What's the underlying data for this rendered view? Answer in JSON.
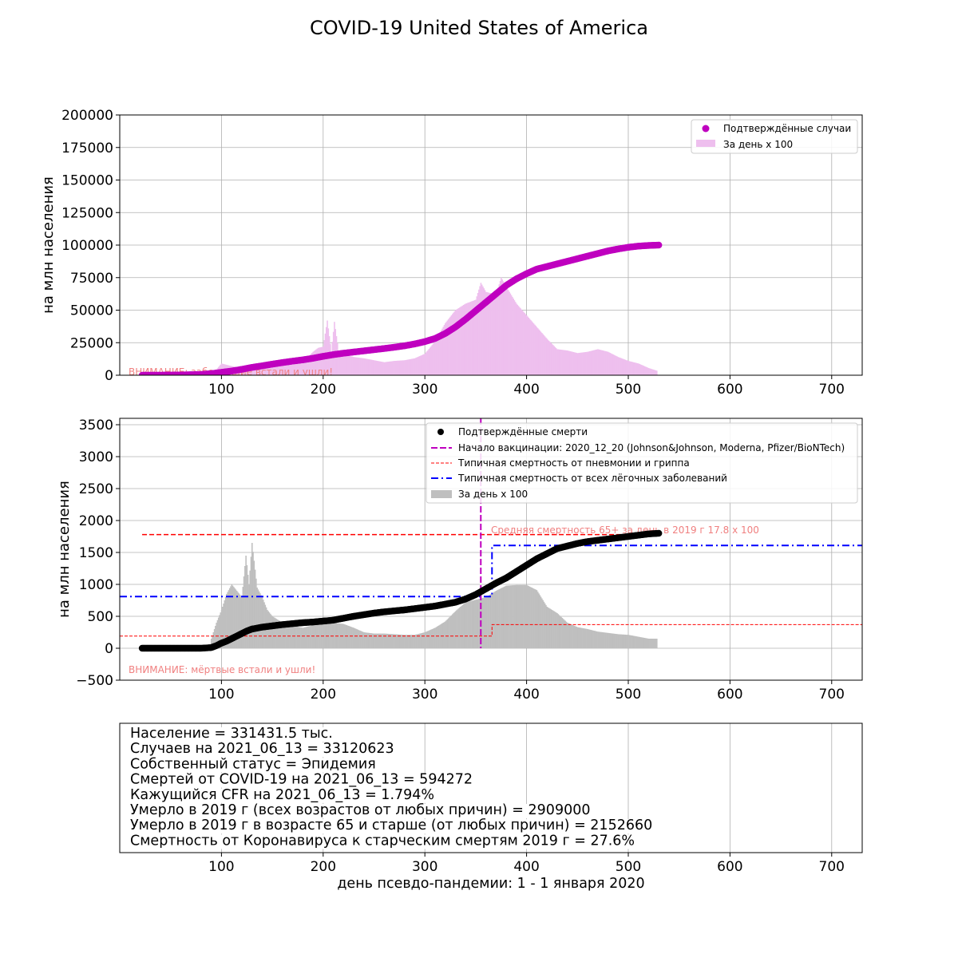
{
  "title": "COVID-19 United States of America",
  "chart_data": [
    {
      "type": "scatter",
      "id": "cases",
      "ylabel": "на млн населения",
      "xlim": [
        0,
        730
      ],
      "ylim": [
        0,
        200000
      ],
      "xticks": [
        100,
        200,
        300,
        400,
        500,
        600,
        700
      ],
      "yticks": [
        0,
        25000,
        50000,
        75000,
        100000,
        125000,
        150000,
        175000,
        200000
      ],
      "grid": true,
      "legend_position": "top-right",
      "legend": [
        "Подтверждённые случаи",
        "За день x 100"
      ],
      "warning": "ВНИМАНИЕ: заболевшие встали и ушли!",
      "colors": {
        "cumulative": "#bf00bf",
        "daily": "#eebfee"
      },
      "series": [
        {
          "name": "Подтверждённые случаи",
          "kind": "scatter",
          "x_range": [
            22,
            530
          ],
          "points": [
            [
              22,
              0
            ],
            [
              40,
              50
            ],
            [
              60,
              200
            ],
            [
              80,
              600
            ],
            [
              90,
              1200
            ],
            [
              100,
              2200
            ],
            [
              110,
              3200
            ],
            [
              120,
              4500
            ],
            [
              130,
              6000
            ],
            [
              140,
              7200
            ],
            [
              150,
              8500
            ],
            [
              160,
              9700
            ],
            [
              170,
              10800
            ],
            [
              180,
              11800
            ],
            [
              190,
              13000
            ],
            [
              200,
              14500
            ],
            [
              210,
              15800
            ],
            [
              220,
              16900
            ],
            [
              230,
              17800
            ],
            [
              240,
              18700
            ],
            [
              250,
              19600
            ],
            [
              260,
              20500
            ],
            [
              270,
              21500
            ],
            [
              280,
              22600
            ],
            [
              290,
              24000
            ],
            [
              300,
              25800
            ],
            [
              310,
              28200
            ],
            [
              320,
              32000
            ],
            [
              330,
              37000
            ],
            [
              340,
              43000
            ],
            [
              350,
              49500
            ],
            [
              360,
              56000
            ],
            [
              370,
              62500
            ],
            [
              380,
              69000
            ],
            [
              390,
              74000
            ],
            [
              400,
              78000
            ],
            [
              410,
              81500
            ],
            [
              420,
              83500
            ],
            [
              430,
              85500
            ],
            [
              440,
              87500
            ],
            [
              450,
              89500
            ],
            [
              460,
              91500
            ],
            [
              470,
              93500
            ],
            [
              480,
              95500
            ],
            [
              490,
              97000
            ],
            [
              500,
              98300
            ],
            [
              510,
              99200
            ],
            [
              520,
              99700
            ],
            [
              530,
              100000
            ]
          ]
        },
        {
          "name": "За день x 100",
          "kind": "bar",
          "points": [
            [
              80,
              1200
            ],
            [
              95,
              4500
            ],
            [
              100,
              9000
            ],
            [
              110,
              7000
            ],
            [
              120,
              5500
            ],
            [
              130,
              4500
            ],
            [
              140,
              5000
            ],
            [
              150,
              7000
            ],
            [
              160,
              10000
            ],
            [
              170,
              8000
            ],
            [
              180,
              10500
            ],
            [
              185,
              14000
            ],
            [
              190,
              18000
            ],
            [
              195,
              21000
            ],
            [
              200,
              22000
            ],
            [
              204,
              42000
            ],
            [
              208,
              18000
            ],
            [
              211,
              41000
            ],
            [
              215,
              19000
            ],
            [
              220,
              16000
            ],
            [
              230,
              14000
            ],
            [
              240,
              13000
            ],
            [
              250,
              11500
            ],
            [
              260,
              10000
            ],
            [
              270,
              11000
            ],
            [
              280,
              11500
            ],
            [
              290,
              13000
            ],
            [
              300,
              16500
            ],
            [
              310,
              26000
            ],
            [
              320,
              40000
            ],
            [
              330,
              50000
            ],
            [
              340,
              55000
            ],
            [
              350,
              58000
            ],
            [
              355,
              71000
            ],
            [
              360,
              64000
            ],
            [
              370,
              62000
            ],
            [
              375,
              75000
            ],
            [
              380,
              68000
            ],
            [
              390,
              55000
            ],
            [
              400,
              46000
            ],
            [
              410,
              37000
            ],
            [
              420,
              28000
            ],
            [
              430,
              20000
            ],
            [
              440,
              19000
            ],
            [
              450,
              17000
            ],
            [
              460,
              18000
            ],
            [
              470,
              20000
            ],
            [
              480,
              18000
            ],
            [
              490,
              14000
            ],
            [
              500,
              11000
            ],
            [
              510,
              9000
            ],
            [
              520,
              5500
            ],
            [
              528,
              3500
            ]
          ]
        }
      ]
    },
    {
      "type": "scatter",
      "id": "deaths",
      "ylabel": "на млн населения",
      "xlim": [
        0,
        730
      ],
      "ylim": [
        -500,
        3600
      ],
      "xticks": [
        100,
        200,
        300,
        400,
        500,
        600,
        700
      ],
      "yticks": [
        -500,
        0,
        500,
        1000,
        1500,
        2000,
        2500,
        3000,
        3500
      ],
      "grid": true,
      "legend_position": "top-right",
      "legend": [
        "Подтверждённые смерти",
        "Начало вакцинации: 2020_12_20 (Johnson&Johnson, Moderna, Pfizer/BioNTech)",
        "Типичная смертность от пневмонии и гриппа",
        "Типичная смертность от всех лёгочных заболеваний",
        "За день x 100"
      ],
      "annotation": "Средняя смертность 65+ за день в 2019 г 17.8 x 100",
      "warning": "ВНИМАНИЕ: мёртвые встали и ушли!",
      "vaccination_day": 355,
      "mean_65_daily_x100": 1780,
      "pneumonia_flu_steps": [
        [
          0,
          190
        ],
        [
          366,
          190
        ],
        [
          366,
          370
        ],
        [
          730,
          370
        ]
      ],
      "all_lung_steps": [
        [
          0,
          810
        ],
        [
          366,
          810
        ],
        [
          366,
          1610
        ],
        [
          730,
          1610
        ]
      ],
      "colors": {
        "cumulative": "#000000",
        "daily": "#bfbfbf",
        "vaccination": "#bf00bf",
        "pneumonia": "#ff0000",
        "lung": "#0000ff",
        "mean65": "#ff0000",
        "annotation": "#f08080"
      },
      "series": [
        {
          "name": "Подтверждённые смерти",
          "kind": "scatter",
          "x_range": [
            22,
            530
          ],
          "points": [
            [
              22,
              0
            ],
            [
              50,
              0
            ],
            [
              80,
              0
            ],
            [
              90,
              10
            ],
            [
              95,
              40
            ],
            [
              100,
              80
            ],
            [
              105,
              110
            ],
            [
              110,
              150
            ],
            [
              115,
              190
            ],
            [
              120,
              230
            ],
            [
              125,
              270
            ],
            [
              130,
              300
            ],
            [
              140,
              330
            ],
            [
              150,
              350
            ],
            [
              160,
              370
            ],
            [
              170,
              385
            ],
            [
              180,
              400
            ],
            [
              190,
              410
            ],
            [
              200,
              425
            ],
            [
              210,
              440
            ],
            [
              220,
              470
            ],
            [
              230,
              500
            ],
            [
              240,
              525
            ],
            [
              250,
              550
            ],
            [
              260,
              570
            ],
            [
              270,
              585
            ],
            [
              280,
              600
            ],
            [
              290,
              620
            ],
            [
              300,
              640
            ],
            [
              310,
              660
            ],
            [
              320,
              690
            ],
            [
              330,
              720
            ],
            [
              340,
              770
            ],
            [
              350,
              840
            ],
            [
              360,
              930
            ],
            [
              370,
              1020
            ],
            [
              380,
              1100
            ],
            [
              390,
              1200
            ],
            [
              400,
              1300
            ],
            [
              410,
              1400
            ],
            [
              420,
              1480
            ],
            [
              430,
              1560
            ],
            [
              440,
              1600
            ],
            [
              450,
              1640
            ],
            [
              460,
              1670
            ],
            [
              470,
              1690
            ],
            [
              480,
              1710
            ],
            [
              490,
              1730
            ],
            [
              500,
              1750
            ],
            [
              510,
              1770
            ],
            [
              520,
              1790
            ],
            [
              530,
              1800
            ]
          ]
        },
        {
          "name": "За день x 100",
          "kind": "bar",
          "points": [
            [
              90,
              150
            ],
            [
              95,
              400
            ],
            [
              100,
              600
            ],
            [
              105,
              850
            ],
            [
              110,
              1000
            ],
            [
              115,
              900
            ],
            [
              120,
              800
            ],
            [
              124,
              1450
            ],
            [
              127,
              1000
            ],
            [
              130,
              1650
            ],
            [
              135,
              950
            ],
            [
              140,
              800
            ],
            [
              145,
              600
            ],
            [
              150,
              500
            ],
            [
              160,
              400
            ],
            [
              170,
              350
            ],
            [
              180,
              320
            ],
            [
              190,
              360
            ],
            [
              200,
              380
            ],
            [
              210,
              400
            ],
            [
              220,
              380
            ],
            [
              230,
              320
            ],
            [
              240,
              250
            ],
            [
              250,
              230
            ],
            [
              260,
              230
            ],
            [
              270,
              220
            ],
            [
              280,
              210
            ],
            [
              290,
              210
            ],
            [
              300,
              250
            ],
            [
              310,
              320
            ],
            [
              320,
              420
            ],
            [
              330,
              580
            ],
            [
              340,
              720
            ],
            [
              350,
              760
            ],
            [
              360,
              800
            ],
            [
              370,
              900
            ],
            [
              380,
              980
            ],
            [
              390,
              990
            ],
            [
              400,
              990
            ],
            [
              410,
              910
            ],
            [
              420,
              650
            ],
            [
              430,
              550
            ],
            [
              440,
              400
            ],
            [
              450,
              330
            ],
            [
              460,
              300
            ],
            [
              470,
              260
            ],
            [
              480,
              240
            ],
            [
              490,
              220
            ],
            [
              500,
              210
            ],
            [
              510,
              180
            ],
            [
              520,
              150
            ],
            [
              528,
              150
            ]
          ]
        }
      ]
    }
  ],
  "info_box": {
    "lines": [
      "Население = 331431.5 тыс.",
      "Случаев на 2021_06_13 = 33120623",
      "Собственный статус = Эпидемия",
      "Смертей от COVID-19 на 2021_06_13 = 594272",
      "Кажущийся CFR на 2021_06_13 = 1.794%",
      "Умерло в 2019 г (всех возрастов от любых причин) = 2909000",
      "Умерло в 2019 г в возрасте 65 и старше (от любых причин) = 2152660",
      "Смертность от Коронавируса к старческим смертям 2019 г = 27.6%"
    ],
    "xticks": [
      100,
      200,
      300,
      400,
      500,
      600,
      700
    ],
    "xlabel": "день псевдо-пандемии: 1 - 1 января 2020"
  }
}
